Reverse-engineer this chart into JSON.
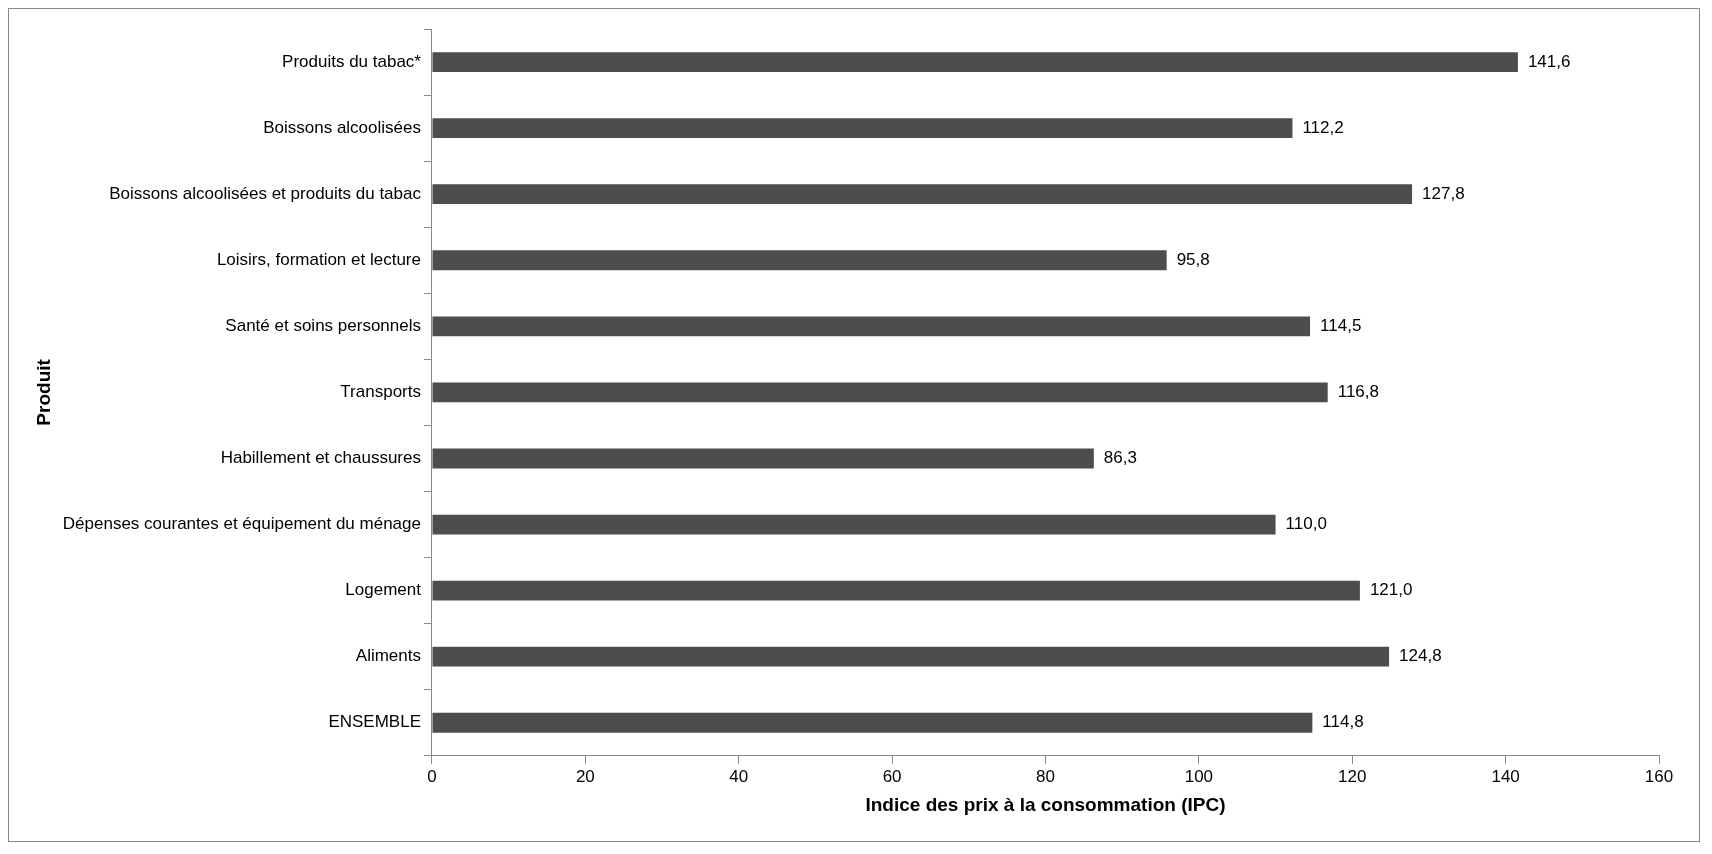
{
  "chart_data": {
    "type": "bar",
    "orientation": "horizontal",
    "xlabel": "Indice des prix à la consommation (IPC)",
    "ylabel": "Produit",
    "categories": [
      "Produits du tabac*",
      "Boissons alcoolisées",
      "Boissons alcoolisées et produits du tabac",
      "Loisirs, formation et lecture",
      "Santé et soins personnels",
      "Transports",
      "Habillement et chaussures",
      "Dépenses courantes et équipement du ménage",
      "Logement",
      "Aliments",
      "ENSEMBLE"
    ],
    "values": [
      141.6,
      112.2,
      127.8,
      95.8,
      114.5,
      116.8,
      86.3,
      110.0,
      121.0,
      124.8,
      114.8
    ],
    "value_labels": [
      "141,6",
      "112,2",
      "127,8",
      "95,8",
      "114,5",
      "116,8",
      "86,3",
      "110,0",
      "121,0",
      "124,8",
      "114,8"
    ],
    "color": "#4d4d4d",
    "xlim": [
      0,
      160
    ],
    "xticks": [
      0,
      20,
      40,
      60,
      80,
      100,
      120,
      140,
      160
    ],
    "grid": false,
    "legend": false
  }
}
